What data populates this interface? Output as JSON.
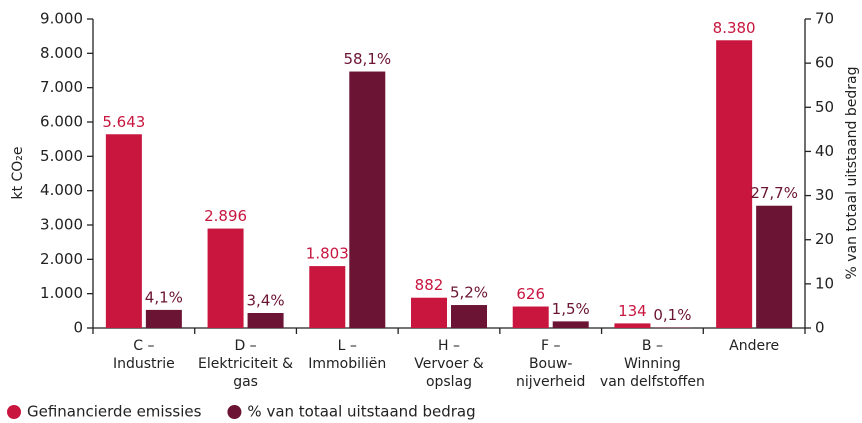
{
  "chart_data": {
    "type": "bar",
    "categories": [
      "C –\nIndustrie",
      "D –\nElektriciteit &\ngas",
      "L –\nImmobiliën",
      "H –\nVervoer &\nopslag",
      "F –\nBouw-\nnijverheid",
      "B –\nWinning\nvan delfstoffen",
      "Andere"
    ],
    "series": [
      {
        "name": "Gefinancierde emissies",
        "color": "#c8163f",
        "values": [
          5643,
          2896,
          1803,
          882,
          626,
          134,
          8380
        ],
        "value_labels": [
          "5.643",
          "2.896",
          "1.803",
          "882",
          "626",
          "134",
          "8.380"
        ]
      },
      {
        "name": "% van totaal uitstaand bedrag",
        "color": "#6b1434",
        "axis": "y2",
        "values": [
          4.1,
          3.4,
          58.1,
          5.2,
          1.5,
          0.1,
          27.7
        ],
        "value_labels": [
          "4,1%",
          "3,4%",
          "58,1%",
          "5,2%",
          "1,5%",
          "0,1%",
          "27,7%"
        ]
      }
    ],
    "ylabel": "kt CO₂e",
    "y2label": "% van totaal uitstaand bedrag",
    "ylim": [
      0,
      9000
    ],
    "yticks": [
      0,
      {
        "value": 1000,
        "label": "1.000"
      },
      {
        "value": 2000,
        "label": "2.000"
      },
      {
        "value": 3000,
        "label": "3.000"
      },
      {
        "value": 4000,
        "label": "4.000"
      },
      {
        "value": 5000,
        "label": "5.000"
      },
      {
        "value": 6000,
        "label": "6.000"
      },
      {
        "value": 7000,
        "label": "7.000"
      },
      {
        "value": 8000,
        "label": "8.000"
      },
      {
        "value": 9000,
        "label": "9.000"
      }
    ],
    "y2lim": [
      0,
      70
    ],
    "y2ticks": [
      0,
      10,
      20,
      30,
      40,
      50,
      60,
      70
    ],
    "legend": "bottom-left"
  }
}
